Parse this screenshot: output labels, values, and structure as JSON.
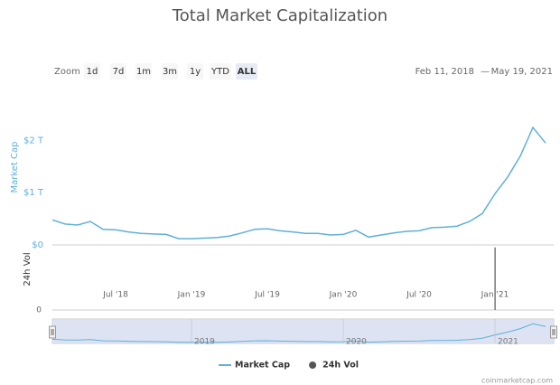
{
  "toolbar": {
    "zoom_label": "Zoom",
    "buttons": [
      "1d",
      "7d",
      "1m",
      "3m",
      "1y",
      "YTD",
      "ALL"
    ],
    "selected": "ALL",
    "range_from": "Feb 11, 2018",
    "range_separator": "—",
    "range_to": "May 19, 2021"
  },
  "credit": "coinmarketcap.com",
  "chart_data": [
    {
      "type": "line",
      "title": "Total Market Capitalization",
      "ylabel": "Market Cap",
      "x": [
        "2018-02",
        "2018-03",
        "2018-04",
        "2018-05",
        "2018-06",
        "2018-07",
        "2018-08",
        "2018-09",
        "2018-10",
        "2018-11",
        "2018-12",
        "2019-01",
        "2019-02",
        "2019-03",
        "2019-04",
        "2019-05",
        "2019-06",
        "2019-07",
        "2019-08",
        "2019-09",
        "2019-10",
        "2019-11",
        "2019-12",
        "2020-01",
        "2020-02",
        "2020-03",
        "2020-04",
        "2020-05",
        "2020-06",
        "2020-07",
        "2020-08",
        "2020-09",
        "2020-10",
        "2020-11",
        "2020-12",
        "2021-01",
        "2021-02",
        "2021-03",
        "2021-04",
        "2021-05"
      ],
      "series": [
        {
          "name": "Market Cap",
          "color": "#5fb0d8",
          "values": [
            480000000000,
            400000000000,
            380000000000,
            450000000000,
            300000000000,
            290000000000,
            250000000000,
            220000000000,
            210000000000,
            200000000000,
            120000000000,
            120000000000,
            130000000000,
            140000000000,
            170000000000,
            230000000000,
            300000000000,
            310000000000,
            270000000000,
            250000000000,
            220000000000,
            220000000000,
            190000000000,
            200000000000,
            280000000000,
            150000000000,
            190000000000,
            230000000000,
            260000000000,
            270000000000,
            330000000000,
            340000000000,
            360000000000,
            450000000000,
            600000000000,
            980000000000,
            1300000000000,
            1700000000000,
            2250000000000,
            1950000000000
          ]
        }
      ],
      "xlim": [
        "2018-02",
        "2021-05"
      ],
      "xticks": [
        {
          "value": "2018-07",
          "label": "Jul '18"
        },
        {
          "value": "2019-01",
          "label": "Jan '19"
        },
        {
          "value": "2019-07",
          "label": "Jul '19"
        },
        {
          "value": "2020-01",
          "label": "Jan '20"
        },
        {
          "value": "2020-07",
          "label": "Jul '20"
        },
        {
          "value": "2021-01",
          "label": "Jan '21"
        }
      ],
      "ylim": [
        0,
        2700000000000
      ],
      "yticks": [
        {
          "value": 0,
          "label": "$0"
        },
        {
          "value": 1000000000000,
          "label": "$1 T"
        },
        {
          "value": 2000000000000,
          "label": "$2 T"
        }
      ],
      "grid": false
    },
    {
      "type": "bar",
      "ylabel": "24h Vol",
      "series": [
        {
          "name": "24h Vol",
          "color": "#555555",
          "values": [
            null,
            null,
            null,
            null,
            null,
            null,
            null,
            null,
            null,
            null,
            null,
            null,
            null,
            null,
            null,
            null,
            null,
            null,
            null,
            null,
            null,
            null,
            null,
            null,
            null,
            null,
            null,
            null,
            null,
            null,
            null,
            null,
            null,
            null,
            null,
            390000000000,
            null,
            null,
            null,
            null
          ]
        }
      ],
      "ylim": [
        0,
        400000000000
      ],
      "yticks": [
        0
      ]
    },
    {
      "type": "navigator",
      "xticks": [
        {
          "value": "2019-01",
          "label": "2019"
        },
        {
          "value": "2020-01",
          "label": "2020"
        },
        {
          "value": "2021-01",
          "label": "2021"
        }
      ]
    }
  ]
}
